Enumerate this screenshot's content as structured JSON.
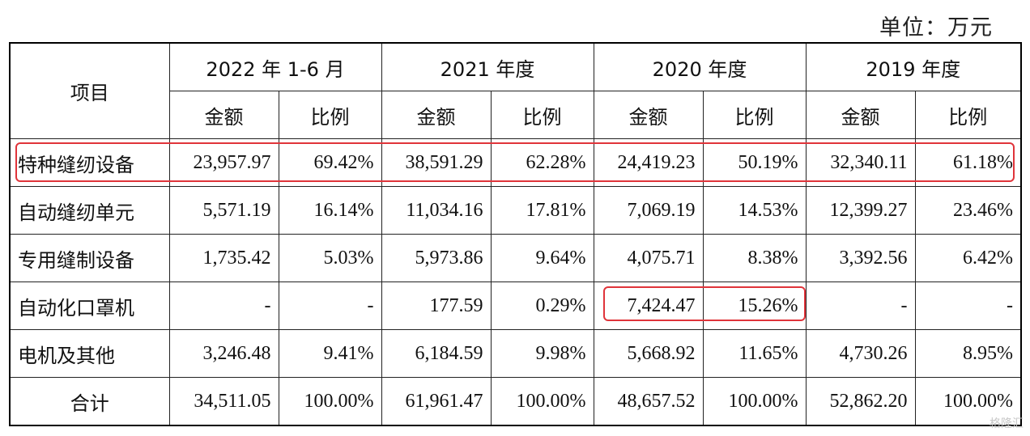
{
  "unit_label": "单位：万元",
  "table": {
    "item_header": "项目",
    "periods": [
      "2022 年 1-6 月",
      "2021 年度",
      "2020 年度",
      "2019 年度"
    ],
    "sub_headers": [
      "金额",
      "比例"
    ],
    "rows": [
      {
        "label": "特种缝纫设备",
        "cells": [
          "23,957.97",
          "69.42%",
          "38,591.29",
          "62.28%",
          "24,419.23",
          "50.19%",
          "32,340.11",
          "61.18%"
        ]
      },
      {
        "label": "自动缝纫单元",
        "cells": [
          "5,571.19",
          "16.14%",
          "11,034.16",
          "17.81%",
          "7,069.19",
          "14.53%",
          "12,399.27",
          "23.46%"
        ]
      },
      {
        "label": "专用缝制设备",
        "cells": [
          "1,735.42",
          "5.03%",
          "5,973.86",
          "9.64%",
          "4,075.71",
          "8.38%",
          "3,392.56",
          "6.42%"
        ]
      },
      {
        "label": "自动化口罩机",
        "cells": [
          "-",
          "-",
          "177.59",
          "0.29%",
          "7,424.47",
          "15.26%",
          "-",
          "-"
        ]
      },
      {
        "label": "电机及其他",
        "cells": [
          "3,246.48",
          "9.41%",
          "6,184.59",
          "9.98%",
          "5,668.92",
          "11.65%",
          "4,730.26",
          "8.95%"
        ]
      }
    ],
    "total": {
      "label": "合计",
      "cells": [
        "34,511.05",
        "100.00%",
        "61,961.47",
        "100.00%",
        "48,657.52",
        "100.00%",
        "52,862.20",
        "100.00%"
      ]
    }
  },
  "highlight_color": "#e0343a",
  "watermark": "格隆汇"
}
